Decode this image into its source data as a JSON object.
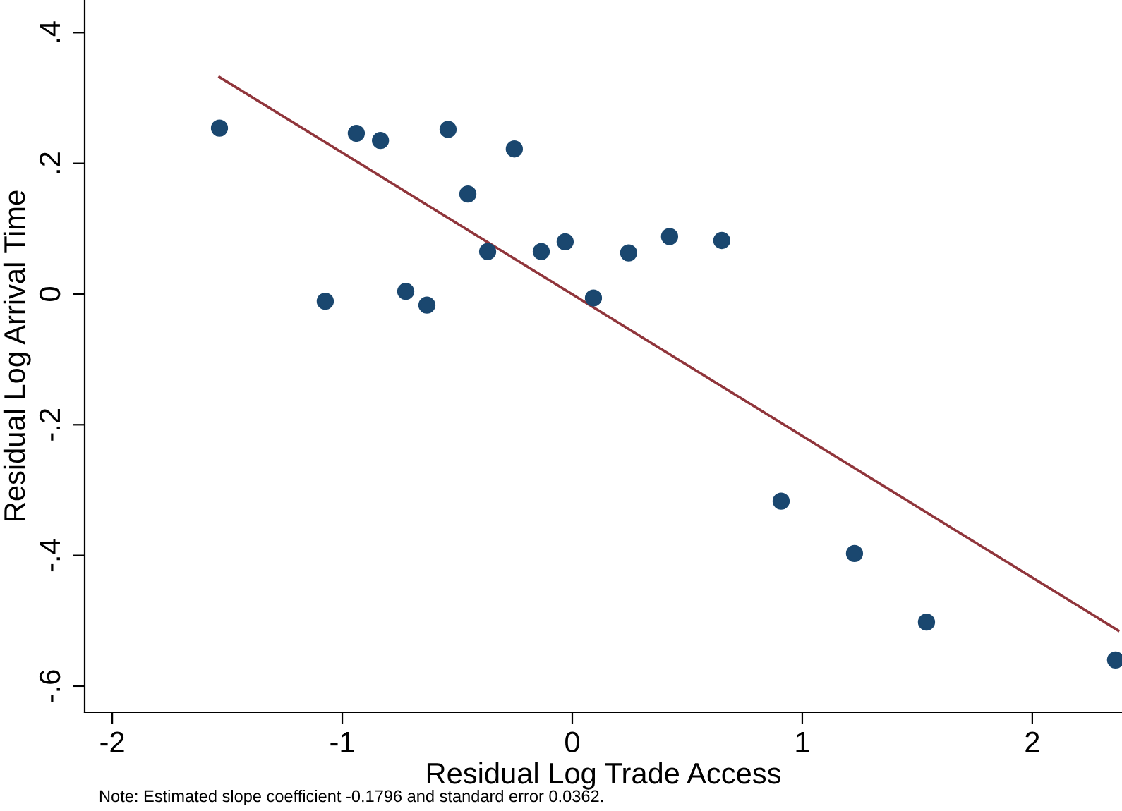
{
  "chart_data": {
    "type": "scatter",
    "xlabel": "Residual Log Trade Access",
    "ylabel": "Residual Log Arrival Time",
    "annotations": [
      "Note: Estimated slope coefficient -0.1796 and standard error 0.0362."
    ],
    "xlim": [
      -2.12,
      2.39
    ],
    "ylim": [
      -0.64,
      0.45
    ],
    "xticks": [
      -2,
      -1,
      0,
      1,
      2
    ],
    "yticks": [
      {
        "value": -0.6,
        "label": "-.6"
      },
      {
        "value": -0.4,
        "label": "-.4"
      },
      {
        "value": -0.2,
        "label": "-.2"
      },
      {
        "value": 0,
        "label": "0"
      },
      {
        "value": 0.2,
        "label": ".2"
      },
      {
        "value": 0.4,
        "label": ".4"
      }
    ],
    "grid": false,
    "legend": false,
    "series": [
      {
        "marker": "circle",
        "color": "#1a476f",
        "x": [
          -1.534,
          -1.074,
          -0.939,
          -0.834,
          -0.724,
          -0.632,
          -0.54,
          -0.454,
          -0.368,
          -0.252,
          -0.135,
          -0.031,
          0.092,
          0.245,
          0.423,
          0.65,
          0.908,
          1.227,
          1.54,
          2.362
        ],
        "values": [
          0.254,
          -0.011,
          0.246,
          0.235,
          0.004,
          -0.017,
          0.252,
          0.153,
          0.065,
          0.222,
          0.065,
          0.08,
          -0.006,
          0.063,
          0.088,
          0.082,
          -0.317,
          -0.397,
          -0.502,
          -0.56
        ]
      },
      {
        "type": "line",
        "marker": "none",
        "color": "#90353b",
        "line_style": "solid",
        "x": [
          -1.534,
          2.374
        ],
        "values": [
          0.332,
          -0.515
        ]
      }
    ]
  }
}
